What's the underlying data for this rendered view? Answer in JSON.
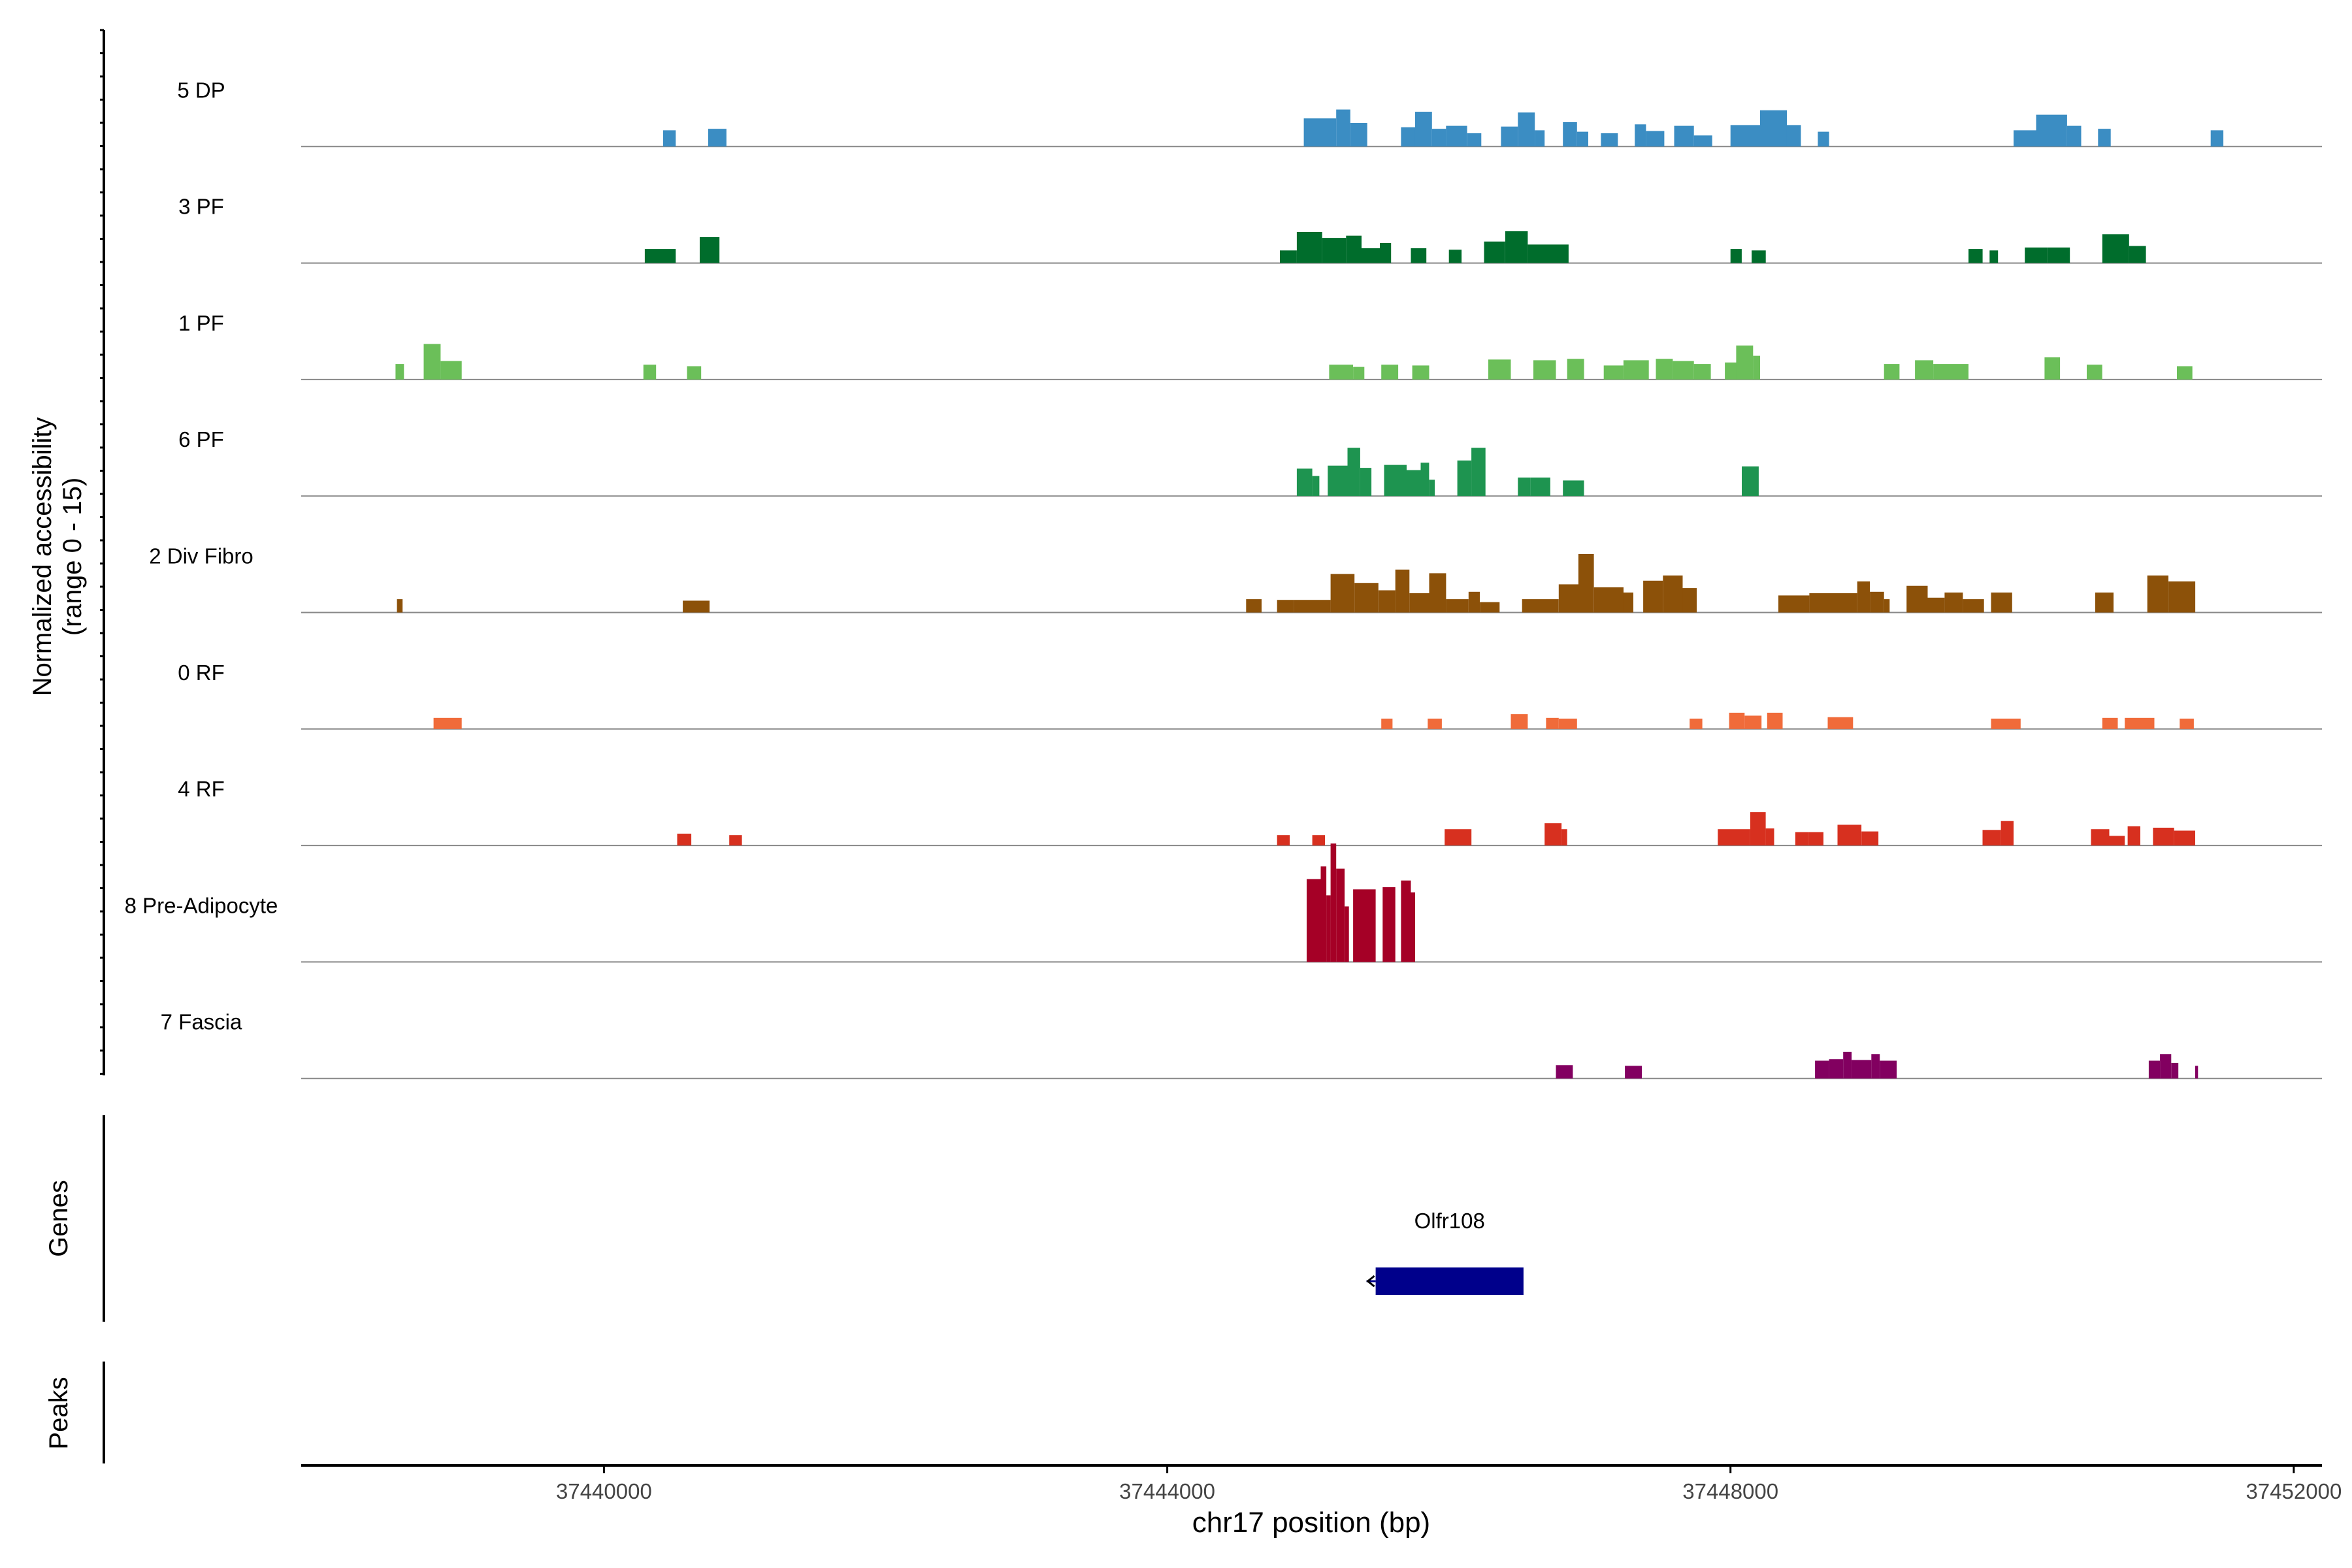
{
  "chart_data": {
    "type": "area",
    "title": "",
    "ylabel_line1": "Normalized accessibility",
    "ylabel_line2": "(range 0 - 15)",
    "xlabel": "chr17 position (bp)",
    "xlim": [
      37437850,
      37452200
    ],
    "xticks": [
      {
        "value": 37440000,
        "label": "37440000"
      },
      {
        "value": 37444000,
        "label": "37444000"
      },
      {
        "value": 37448000,
        "label": "37448000"
      },
      {
        "value": 37452000,
        "label": "37452000"
      }
    ],
    "y_range": [
      0,
      15
    ],
    "genes_label": "Genes",
    "peaks_label": "Peaks",
    "genes": [
      {
        "name": "Olfr108",
        "start": 37445480,
        "end": 37446530,
        "strand": "-",
        "color": "#00008B"
      }
    ],
    "tracks": [
      {
        "name": "5 DP",
        "color": "#3B8DC3",
        "values": [
          [
            37440420,
            37440510,
            2.2
          ],
          [
            37440740,
            37440870,
            2.4
          ],
          [
            37444970,
            37445200,
            3.8
          ],
          [
            37445200,
            37445300,
            5.0
          ],
          [
            37445300,
            37445420,
            3.2
          ],
          [
            37445660,
            37445760,
            2.6
          ],
          [
            37445760,
            37445880,
            4.7
          ],
          [
            37445880,
            37445980,
            2.4
          ],
          [
            37445980,
            37446130,
            2.8
          ],
          [
            37446130,
            37446230,
            1.8
          ],
          [
            37446370,
            37446490,
            2.7
          ],
          [
            37446490,
            37446610,
            4.6
          ],
          [
            37446610,
            37446680,
            2.2
          ],
          [
            37446810,
            37446910,
            3.3
          ],
          [
            37446910,
            37446990,
            2.0
          ],
          [
            37447080,
            37447200,
            1.8
          ],
          [
            37447320,
            37447400,
            3.0
          ],
          [
            37447400,
            37447530,
            2.1
          ],
          [
            37447600,
            37447740,
            2.8
          ],
          [
            37447740,
            37447870,
            1.5
          ],
          [
            37448000,
            37448210,
            2.9
          ],
          [
            37448210,
            37448400,
            4.9
          ],
          [
            37448400,
            37448500,
            2.9
          ],
          [
            37448620,
            37448700,
            2.0
          ],
          [
            37450010,
            37450170,
            2.2
          ],
          [
            37450170,
            37450390,
            4.3
          ],
          [
            37450390,
            37450490,
            2.8
          ],
          [
            37450610,
            37450700,
            2.4
          ],
          [
            37451410,
            37451500,
            2.2
          ]
        ]
      },
      {
        "name": "3 PF",
        "color": "#006D2C",
        "values": [
          [
            37440290,
            37440510,
            1.9
          ],
          [
            37440680,
            37440820,
            3.5
          ],
          [
            37444800,
            37444920,
            1.7
          ],
          [
            37444920,
            37445100,
            4.2
          ],
          [
            37445100,
            37445270,
            3.4
          ],
          [
            37445270,
            37445380,
            3.7
          ],
          [
            37445380,
            37445510,
            2.0
          ],
          [
            37445510,
            37445590,
            2.7
          ],
          [
            37445730,
            37445840,
            2.0
          ],
          [
            37446000,
            37446090,
            1.8
          ],
          [
            37446250,
            37446400,
            2.9
          ],
          [
            37446400,
            37446560,
            4.3
          ],
          [
            37446560,
            37446850,
            2.5
          ],
          [
            37448000,
            37448080,
            1.9
          ],
          [
            37448150,
            37448250,
            1.7
          ],
          [
            37449690,
            37449790,
            1.9
          ],
          [
            37449840,
            37449900,
            1.7
          ],
          [
            37450090,
            37450250,
            2.1
          ],
          [
            37450250,
            37450410,
            2.1
          ],
          [
            37450640,
            37450830,
            3.9
          ],
          [
            37450830,
            37450950,
            2.3
          ]
        ]
      },
      {
        "name": "1 PF",
        "color": "#6BBF59",
        "values": [
          [
            37438520,
            37438580,
            2.1
          ],
          [
            37438720,
            37438840,
            4.8
          ],
          [
            37438840,
            37438990,
            2.5
          ],
          [
            37440280,
            37440370,
            2.0
          ],
          [
            37440590,
            37440690,
            1.8
          ],
          [
            37445150,
            37445320,
            2.0
          ],
          [
            37445320,
            37445400,
            1.7
          ],
          [
            37445520,
            37445640,
            2.0
          ],
          [
            37445740,
            37445860,
            1.9
          ],
          [
            37446280,
            37446440,
            2.7
          ],
          [
            37446600,
            37446760,
            2.6
          ],
          [
            37446840,
            37446960,
            2.8
          ],
          [
            37447100,
            37447240,
            1.9
          ],
          [
            37447240,
            37447420,
            2.6
          ],
          [
            37447470,
            37447590,
            2.8
          ],
          [
            37447590,
            37447740,
            2.5
          ],
          [
            37447740,
            37447860,
            2.1
          ],
          [
            37447960,
            37448050,
            2.3
          ],
          [
            37448040,
            37448160,
            4.6
          ],
          [
            37448160,
            37448210,
            3.2
          ],
          [
            37449090,
            37449200,
            2.1
          ],
          [
            37449310,
            37449440,
            2.6
          ],
          [
            37449440,
            37449690,
            2.1
          ],
          [
            37450230,
            37450340,
            3.0
          ],
          [
            37450530,
            37450640,
            2.0
          ],
          [
            37451170,
            37451280,
            1.8
          ]
        ]
      },
      {
        "name": "6 PF",
        "color": "#1E9450",
        "values": [
          [
            37444920,
            37445030,
            3.7
          ],
          [
            37445030,
            37445080,
            2.7
          ],
          [
            37445140,
            37445280,
            4.1
          ],
          [
            37445280,
            37445370,
            6.5
          ],
          [
            37445370,
            37445450,
            3.8
          ],
          [
            37445540,
            37445700,
            4.2
          ],
          [
            37445700,
            37445800,
            3.5
          ],
          [
            37445800,
            37445860,
            4.5
          ],
          [
            37445860,
            37445900,
            2.2
          ],
          [
            37446060,
            37446160,
            4.8
          ],
          [
            37446160,
            37446260,
            6.5
          ],
          [
            37446490,
            37446580,
            2.5
          ],
          [
            37446580,
            37446720,
            2.5
          ],
          [
            37446810,
            37446960,
            2.1
          ],
          [
            37448080,
            37448200,
            4.0
          ]
        ]
      },
      {
        "name": "2 Div Fibro",
        "color": "#8C5109",
        "values": [
          [
            37438530,
            37438570,
            1.8
          ],
          [
            37440560,
            37440750,
            1.6
          ],
          [
            37444560,
            37444670,
            1.8
          ],
          [
            37444780,
            37444900,
            1.7
          ],
          [
            37444900,
            37445160,
            1.7
          ],
          [
            37445160,
            37445330,
            5.2
          ],
          [
            37445330,
            37445500,
            4.0
          ],
          [
            37445500,
            37445620,
            3.0
          ],
          [
            37445620,
            37445720,
            5.8
          ],
          [
            37445720,
            37445860,
            2.6
          ],
          [
            37445860,
            37445980,
            5.3
          ],
          [
            37445980,
            37446140,
            1.8
          ],
          [
            37446140,
            37446220,
            2.8
          ],
          [
            37446220,
            37446360,
            1.4
          ],
          [
            37446520,
            37446780,
            1.8
          ],
          [
            37446780,
            37446920,
            3.8
          ],
          [
            37446920,
            37447030,
            7.9
          ],
          [
            37447030,
            37447240,
            3.4
          ],
          [
            37447240,
            37447310,
            2.7
          ],
          [
            37447380,
            37447520,
            4.3
          ],
          [
            37447520,
            37447660,
            5.0
          ],
          [
            37447660,
            37447760,
            3.3
          ],
          [
            37448340,
            37448560,
            2.3
          ],
          [
            37448560,
            37448900,
            2.6
          ],
          [
            37448900,
            37448990,
            4.2
          ],
          [
            37448990,
            37449090,
            2.8
          ],
          [
            37449090,
            37449130,
            1.8
          ],
          [
            37449250,
            37449400,
            3.6
          ],
          [
            37449400,
            37449520,
            2.0
          ],
          [
            37449520,
            37449650,
            2.7
          ],
          [
            37449650,
            37449800,
            1.8
          ],
          [
            37449850,
            37450000,
            2.7
          ],
          [
            37450590,
            37450720,
            2.7
          ],
          [
            37450960,
            37451110,
            5.0
          ],
          [
            37451110,
            37451300,
            4.2
          ]
        ]
      },
      {
        "name": "0 RF",
        "color": "#F06B3A",
        "values": [
          [
            37438790,
            37438880,
            1.5
          ],
          [
            37438880,
            37438990,
            1.5
          ],
          [
            37445520,
            37445600,
            1.4
          ],
          [
            37445850,
            37445950,
            1.4
          ],
          [
            37446440,
            37446560,
            2.0
          ],
          [
            37446690,
            37446780,
            1.5
          ],
          [
            37446780,
            37446910,
            1.4
          ],
          [
            37447710,
            37447800,
            1.4
          ],
          [
            37447990,
            37448100,
            2.2
          ],
          [
            37448100,
            37448220,
            1.8
          ],
          [
            37448260,
            37448370,
            2.2
          ],
          [
            37448690,
            37448870,
            1.6
          ],
          [
            37449850,
            37450060,
            1.4
          ],
          [
            37450640,
            37450750,
            1.5
          ],
          [
            37450800,
            37451010,
            1.5
          ],
          [
            37451190,
            37451290,
            1.4
          ]
        ]
      },
      {
        "name": "4 RF",
        "color": "#D7301F",
        "values": [
          [
            37440520,
            37440620,
            1.6
          ],
          [
            37440890,
            37440980,
            1.4
          ],
          [
            37444780,
            37444870,
            1.4
          ],
          [
            37445030,
            37445120,
            1.4
          ],
          [
            37445970,
            37446160,
            2.2
          ],
          [
            37446680,
            37446800,
            3.0
          ],
          [
            37446800,
            37446840,
            2.2
          ],
          [
            37447910,
            37448140,
            2.2
          ],
          [
            37448140,
            37448250,
            4.5
          ],
          [
            37448250,
            37448310,
            2.3
          ],
          [
            37448460,
            37448550,
            1.8
          ],
          [
            37448550,
            37448660,
            1.8
          ],
          [
            37448760,
            37448930,
            2.8
          ],
          [
            37448930,
            37449050,
            1.9
          ],
          [
            37449790,
            37449920,
            2.1
          ],
          [
            37449920,
            37450010,
            3.3
          ],
          [
            37450560,
            37450690,
            2.2
          ],
          [
            37450690,
            37450800,
            1.3
          ],
          [
            37450820,
            37450910,
            2.6
          ],
          [
            37451000,
            37451150,
            2.4
          ],
          [
            37451150,
            37451300,
            2.0
          ]
        ]
      },
      {
        "name": "8 Pre-Adipocyte",
        "color": "#A50026",
        "values": [
          [
            37444990,
            37445090,
            11.2
          ],
          [
            37445090,
            37445130,
            12.9
          ],
          [
            37445130,
            37445160,
            9.0
          ],
          [
            37445160,
            37445200,
            16.0
          ],
          [
            37445200,
            37445260,
            12.6
          ],
          [
            37445260,
            37445290,
            7.5
          ],
          [
            37445320,
            37445480,
            9.8
          ],
          [
            37445530,
            37445620,
            10.1
          ],
          [
            37445660,
            37445730,
            11.0
          ],
          [
            37445730,
            37445760,
            9.4
          ]
        ]
      },
      {
        "name": "7 Fascia",
        "color": "#820060",
        "values": [
          [
            37446760,
            37446880,
            1.8
          ],
          [
            37447250,
            37447370,
            1.7
          ],
          [
            37448600,
            37448700,
            2.4
          ],
          [
            37448700,
            37448800,
            2.6
          ],
          [
            37448800,
            37448860,
            3.6
          ],
          [
            37448860,
            37449000,
            2.5
          ],
          [
            37449000,
            37449060,
            3.3
          ],
          [
            37449060,
            37449180,
            2.4
          ],
          [
            37450970,
            37451050,
            2.4
          ],
          [
            37451050,
            37451130,
            3.3
          ],
          [
            37451130,
            37451180,
            2.1
          ],
          [
            37451300,
            37451320,
            1.7
          ]
        ]
      }
    ]
  }
}
